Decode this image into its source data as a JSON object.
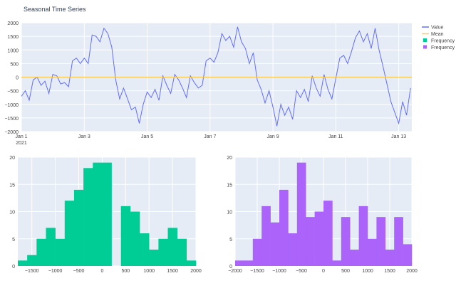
{
  "title": "Seasonal Time Series",
  "colors": {
    "value": "#636efa",
    "mean": "#fecb52",
    "hist1": "#00cc96",
    "hist2": "#ab63fa",
    "plot_bg": "#e5ecf6",
    "grid": "#ffffff"
  },
  "legend": {
    "placement": "right",
    "items": [
      {
        "label": "Value",
        "symbol": "line",
        "color": "#636efa"
      },
      {
        "label": "Mean",
        "symbol": "line",
        "color": "#fecb52"
      },
      {
        "label": "Frequency",
        "symbol": "square",
        "color": "#00cc96"
      },
      {
        "label": "Frequency",
        "symbol": "square",
        "color": "#ab63fa"
      }
    ]
  },
  "chart_data": [
    {
      "type": "line",
      "title": "Seasonal Time Series",
      "xlabel": "",
      "ylabel": "",
      "xlim": [
        "2021-01-01 00:00",
        "2021-01-13 10:00"
      ],
      "ylim": [
        -2000,
        2000
      ],
      "yticks": [
        2000,
        1500,
        1000,
        500,
        0,
        -500,
        -1000,
        -1500,
        -2000
      ],
      "yticklabels": [
        "2000",
        "1500",
        "1000",
        "500",
        "0",
        "−500",
        "−1000",
        "−1500",
        "−2000"
      ],
      "xticks": [
        "2021-01-01",
        "2021-01-03",
        "2021-01-05",
        "2021-01-07",
        "2021-01-09",
        "2021-01-11",
        "2021-01-13"
      ],
      "xticklabels": [
        "Jan 1",
        "Jan 3",
        "Jan 5",
        "Jan 7",
        "Jan 9",
        "Jan 11",
        "Jan 13"
      ],
      "xtick_year": "2021",
      "grid": true,
      "series": [
        {
          "name": "Value",
          "start": "2021-01-01 00:00",
          "step_hours": 3,
          "values": [
            -700,
            -500,
            -850,
            -100,
            0,
            -300,
            -150,
            -600,
            100,
            50,
            -250,
            -200,
            -350,
            600,
            700,
            500,
            700,
            500,
            1550,
            1500,
            1300,
            1800,
            1600,
            1100,
            -100,
            -800,
            -400,
            -800,
            -1200,
            -1100,
            -1700,
            -1000,
            -550,
            -750,
            -450,
            -850,
            50,
            -300,
            -600,
            100,
            -100,
            -400,
            -750,
            50,
            -200,
            -400,
            -300,
            600,
            700,
            550,
            900,
            1600,
            1350,
            1500,
            1100,
            1850,
            1300,
            1050,
            500,
            900,
            -100,
            -450,
            -950,
            -500,
            -1100,
            -1800,
            -1000,
            -1400,
            -1100,
            -1550,
            -500,
            -750,
            -450,
            -900,
            50,
            -400,
            -700,
            100,
            -450,
            -800,
            -50,
            700,
            800,
            500,
            950,
            1450,
            1700,
            1300,
            1600,
            1050,
            1800,
            1000,
            400,
            -250,
            -900,
            -1300,
            -1700,
            -900,
            -1400,
            -400
          ]
        },
        {
          "name": "Mean",
          "value": 0
        }
      ]
    },
    {
      "type": "bar",
      "subtype": "histogram",
      "series_name": "Frequency",
      "bin_size": 200,
      "bin_starts": [
        -1800,
        -1600,
        -1400,
        -1200,
        -1000,
        -800,
        -600,
        -400,
        -200,
        0,
        200,
        400,
        600,
        800,
        1000,
        1200,
        1400,
        1600,
        1800
      ],
      "values": [
        1,
        2,
        5,
        7,
        5,
        12,
        14,
        18,
        19,
        19,
        0,
        11,
        10,
        6,
        3,
        5,
        7,
        5,
        1
      ],
      "xlim": [
        -1800,
        2000
      ],
      "ylim": [
        0,
        20
      ],
      "xticks": [
        -1500,
        -1000,
        -500,
        0,
        500,
        1000,
        1500,
        2000
      ],
      "xticklabels": [
        "−1500",
        "−1000",
        "−500",
        "0",
        "500",
        "1000",
        "1500",
        "2000"
      ],
      "yticks": [
        0,
        5,
        10,
        15,
        20
      ],
      "yticklabels": [
        "0",
        "5",
        "10",
        "15",
        "20"
      ],
      "grid": true
    },
    {
      "type": "bar",
      "subtype": "histogram",
      "series_name": "Frequency",
      "bin_size": 200,
      "bin_starts": [
        -2000,
        -1800,
        -1600,
        -1400,
        -1200,
        -1000,
        -800,
        -600,
        -400,
        -200,
        0,
        200,
        400,
        600,
        800,
        1000,
        1200,
        1400,
        1600,
        1800
      ],
      "values": [
        1,
        1,
        5,
        11,
        8,
        14,
        6,
        19,
        9,
        10,
        12,
        1,
        9,
        3,
        11,
        5,
        9,
        3,
        9,
        4
      ],
      "xlim": [
        -2000,
        2000
      ],
      "ylim": [
        0,
        20
      ],
      "xticks": [
        -2000,
        -1500,
        -1000,
        -500,
        0,
        500,
        1000,
        1500,
        2000
      ],
      "xticklabels": [
        "−2000",
        "−1500",
        "−1000",
        "−500",
        "0",
        "500",
        "1000",
        "1500",
        "2000"
      ],
      "yticks": [
        0,
        5,
        10,
        15,
        20
      ],
      "yticklabels": [
        "0",
        "5",
        "10",
        "15",
        "20"
      ],
      "grid": true
    }
  ]
}
